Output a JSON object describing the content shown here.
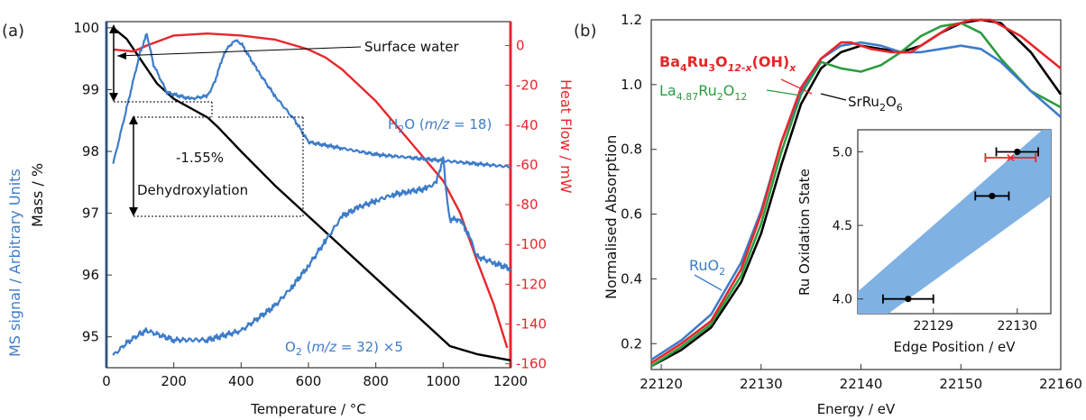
{
  "chart_data": [
    {
      "panel": "a",
      "panel_label": "(a)",
      "type": "line",
      "xlabel": "Temperature / °C",
      "xlim": [
        0,
        1200
      ],
      "x_ticks": [
        0,
        200,
        400,
        600,
        800,
        1000,
        1200
      ],
      "y_left_outer_label": "MS signal / Arbitrary Units",
      "y_left_label": "Mass / %",
      "ylim_left": [
        94.5,
        100.1
      ],
      "y_left_ticks": [
        95,
        96,
        97,
        98,
        99,
        100
      ],
      "y_right_label": "Heat Flow / mW",
      "ylim_right": [
        -162,
        12
      ],
      "y_right_ticks": [
        0,
        -20,
        -40,
        -60,
        -80,
        -100,
        -120,
        -140,
        -160
      ],
      "colors": {
        "mass": "#000000",
        "heat": "#e8262b",
        "ms": "#3d7cc9"
      },
      "annotations": {
        "surface_water": "Surface water",
        "pct": "-1.55%",
        "dehydroxylation": "Dehydroxylation",
        "h2o_label": "H2O (m/z = 18)",
        "o2_label": "O2 (m/z = 32) ×5"
      },
      "series": [
        {
          "name": "Mass",
          "axis": "left",
          "x": [
            20,
            60,
            100,
            150,
            200,
            250,
            300,
            330,
            400,
            500,
            600,
            700,
            800,
            900,
            950,
            1000,
            1020,
            1100,
            1200
          ],
          "y": [
            100.0,
            99.82,
            99.5,
            99.1,
            98.85,
            98.7,
            98.55,
            98.4,
            98.0,
            97.45,
            96.95,
            96.45,
            95.95,
            95.45,
            95.2,
            94.95,
            94.85,
            94.72,
            94.62
          ]
        },
        {
          "name": "Heat Flow",
          "axis": "right",
          "x": [
            20,
            80,
            120,
            200,
            300,
            400,
            500,
            600,
            650,
            700,
            800,
            900,
            950,
            1000,
            1050,
            1100,
            1150,
            1190
          ],
          "y": [
            -2,
            -3,
            0,
            5,
            6,
            5,
            3,
            -2,
            -6,
            -12,
            -28,
            -48,
            -58,
            -68,
            -84,
            -108,
            -130,
            -152
          ]
        },
        {
          "name": "H2O",
          "axis": "left",
          "x": [
            20,
            60,
            100,
            120,
            140,
            180,
            250,
            300,
            320,
            350,
            380,
            400,
            450,
            500,
            560,
            600,
            700,
            800,
            900,
            1000,
            1100,
            1200
          ],
          "y": [
            97.8,
            98.7,
            99.6,
            99.9,
            99.4,
            98.95,
            98.85,
            98.9,
            99.1,
            99.6,
            99.8,
            99.75,
            99.3,
            98.9,
            98.5,
            98.15,
            98.05,
            97.95,
            97.9,
            97.85,
            97.8,
            97.75
          ]
        },
        {
          "name": "O2",
          "axis": "left",
          "x": [
            20,
            60,
            100,
            120,
            200,
            300,
            400,
            500,
            550,
            600,
            650,
            700,
            750,
            800,
            850,
            900,
            950,
            980,
            1000,
            1010,
            1020,
            1050,
            1080,
            1100,
            1150,
            1200
          ],
          "y": [
            94.7,
            94.9,
            95.05,
            95.1,
            94.95,
            94.95,
            95.1,
            95.5,
            95.8,
            96.15,
            96.55,
            96.95,
            97.1,
            97.2,
            97.3,
            97.35,
            97.4,
            97.5,
            97.9,
            97.3,
            96.9,
            96.9,
            96.6,
            96.3,
            96.2,
            96.1
          ]
        }
      ]
    },
    {
      "panel": "b",
      "panel_label": "(b)",
      "type": "line",
      "xlabel": "Energy / eV",
      "ylabel": "Normalised Absorption",
      "xlim": [
        22119,
        22160
      ],
      "ylim": [
        0.12,
        1.2
      ],
      "x_ticks": [
        22120,
        22130,
        22140,
        22150,
        22160
      ],
      "y_ticks": [
        0.2,
        0.4,
        0.6,
        0.8,
        1.0,
        1.2
      ],
      "y_tick_labels": [
        "0.2",
        "0.4",
        "0.6",
        "0.8",
        "1.0",
        "1.2"
      ],
      "colors": {
        "Ba4Ru3O12-x(OH)x": "#e8262b",
        "La4.87Ru2O12": "#2a9d3e",
        "SrRu2O6": "#000000",
        "RuO2": "#3d7cc9",
        "band": "#7fb2e3"
      },
      "series_labels": {
        "ba_main": "Ba4Ru3O12-x(OH)x",
        "la_main": "La4.87Ru2O12",
        "sr_main": "SrRu2O6",
        "ruo2_main": "RuO2"
      },
      "series": [
        {
          "name": "Ba4Ru3O12-x(OH)x",
          "x": [
            22119,
            22122,
            22125,
            22128,
            22130,
            22132,
            22134,
            22136,
            22138,
            22139,
            22141,
            22143,
            22145,
            22147,
            22149,
            22151,
            22153,
            22156,
            22160
          ],
          "y": [
            0.14,
            0.2,
            0.27,
            0.43,
            0.6,
            0.82,
            0.99,
            1.08,
            1.13,
            1.13,
            1.11,
            1.1,
            1.1,
            1.14,
            1.18,
            1.2,
            1.2,
            1.15,
            1.05
          ]
        },
        {
          "name": "La4.87Ru2O12",
          "x": [
            22119,
            22122,
            22125,
            22128,
            22130,
            22132,
            22134,
            22136,
            22138,
            22140,
            22142,
            22144,
            22146,
            22148,
            22150,
            22152,
            22154,
            22157,
            22160
          ],
          "y": [
            0.13,
            0.19,
            0.26,
            0.41,
            0.57,
            0.79,
            0.97,
            1.07,
            1.05,
            1.04,
            1.06,
            1.1,
            1.15,
            1.18,
            1.19,
            1.16,
            1.08,
            0.98,
            0.93
          ]
        },
        {
          "name": "SrRu2O6",
          "x": [
            22119,
            22122,
            22125,
            22128,
            22130,
            22132,
            22134,
            22136,
            22138,
            22140,
            22142,
            22144,
            22146,
            22148,
            22150,
            22152,
            22154,
            22157,
            22160
          ],
          "y": [
            0.13,
            0.18,
            0.25,
            0.39,
            0.54,
            0.75,
            0.94,
            1.05,
            1.1,
            1.12,
            1.11,
            1.1,
            1.12,
            1.16,
            1.19,
            1.2,
            1.19,
            1.1,
            0.97
          ]
        },
        {
          "name": "RuO2",
          "x": [
            22119,
            22122,
            22125,
            22128,
            22130,
            22132,
            22134,
            22136,
            22138,
            22140,
            22142,
            22144,
            22146,
            22148,
            22150,
            22152,
            22154,
            22157,
            22160
          ],
          "y": [
            0.15,
            0.21,
            0.29,
            0.45,
            0.61,
            0.82,
            0.98,
            1.08,
            1.12,
            1.13,
            1.12,
            1.1,
            1.1,
            1.11,
            1.12,
            1.11,
            1.07,
            0.98,
            0.9
          ]
        }
      ]
    },
    {
      "panel": "b-inset",
      "type": "scatter",
      "xlabel": "Edge Position / eV",
      "ylabel": "Ru Oxidation State",
      "xlim": [
        22128.1,
        22130.4
      ],
      "ylim": [
        3.9,
        5.15
      ],
      "x_ticks": [
        22129,
        22130
      ],
      "x_tick_labels": [
        "22129",
        "22130"
      ],
      "y_ticks": [
        4.0,
        4.5,
        5.0
      ],
      "y_tick_labels": [
        "4.0",
        "4.5",
        "5.0"
      ],
      "fit_band": [
        {
          "x": 22128.1,
          "ylow": 3.75,
          "yhigh": 4.05
        },
        {
          "x": 22130.4,
          "ylow": 4.7,
          "yhigh": 5.2
        }
      ],
      "points": [
        {
          "x": 22128.7,
          "y": 4.0,
          "xerr": 0.3,
          "color": "#000000",
          "marker": "circle"
        },
        {
          "x": 22129.7,
          "y": 4.7,
          "xerr": 0.2,
          "color": "#000000",
          "marker": "circle"
        },
        {
          "x": 22130.0,
          "y": 5.0,
          "xerr": 0.25,
          "color": "#000000",
          "marker": "circle"
        },
        {
          "x": 22129.92,
          "y": 4.96,
          "xerr": 0.3,
          "color": "#e8262b",
          "marker": "x"
        }
      ]
    }
  ]
}
